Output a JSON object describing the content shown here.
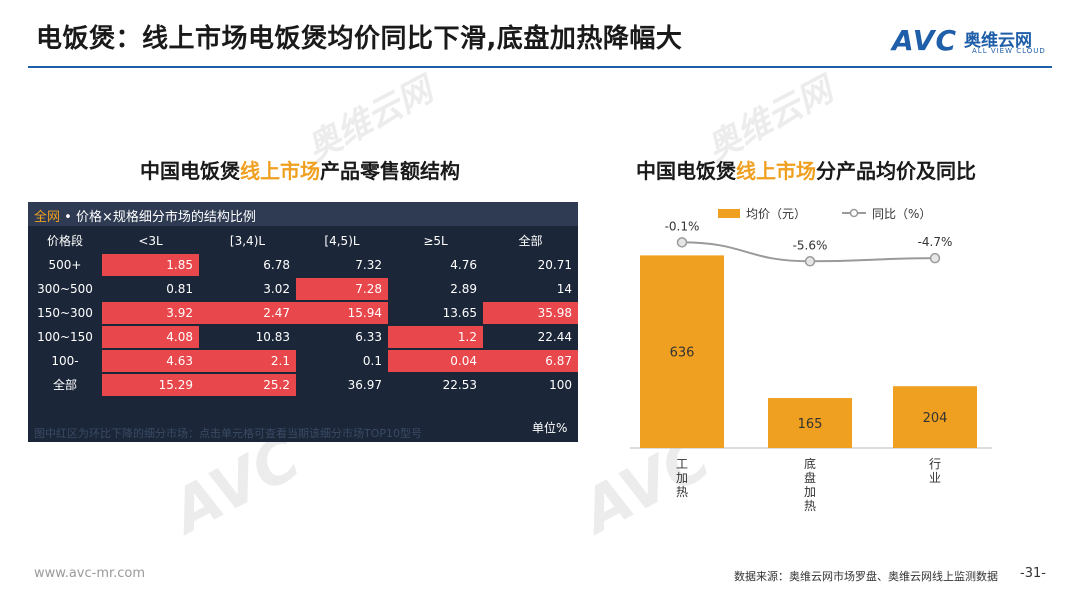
{
  "header": {
    "title": "电饭煲：线上市场电饭煲均价同比下滑,底盘加热降幅大",
    "logo_text": "AVC",
    "logo_cn": "奥维云网",
    "logo_en": "ALL VIEW CLOUD"
  },
  "watermark": {
    "cn": "奥维云网",
    "en": "ALL VIEW CLOUD",
    "mark": "AVC"
  },
  "left_panel": {
    "title_pre": "中国电饭煲",
    "title_hl": "线上市场",
    "title_post": "产品零售额结构",
    "caption_tag": "全网",
    "caption_text": " • 价格×规格细分市场的结构比例",
    "footnote": "图中红区为环比下降的细分市场：点击单元格可查看当期该细分市场TOP10型号",
    "unit": "单位%"
  },
  "right_panel": {
    "title_pre": "中国电饭煲",
    "title_hl": "线上市场",
    "title_post": "分产品均价及同比"
  },
  "footer": {
    "site": "www.avc-mr.com",
    "source": "数据来源：奥维云网市场罗盘、奥维云网线上监测数据",
    "page": "-31-"
  },
  "colors": {
    "accent": "#1f5ea8",
    "bar": "#f0a020",
    "line": "#9a9a9a",
    "red_cell": "#e8474c",
    "table_bg": "#1b2638"
  },
  "chart_data": [
    {
      "type": "table",
      "columns": [
        "价格段",
        "<3L",
        "[3,4)L",
        "[4,5)L",
        "≥5L",
        "全部"
      ],
      "rows": [
        {
          "label": "500+",
          "values": [
            "1.85",
            "6.78",
            "7.32",
            "4.76",
            "20.71"
          ],
          "red": [
            true,
            false,
            false,
            false,
            false
          ]
        },
        {
          "label": "300~500",
          "values": [
            "0.81",
            "3.02",
            "7.28",
            "2.89",
            "14"
          ],
          "red": [
            false,
            false,
            true,
            false,
            false
          ]
        },
        {
          "label": "150~300",
          "values": [
            "3.92",
            "2.47",
            "15.94",
            "13.65",
            "35.98"
          ],
          "red": [
            true,
            true,
            true,
            false,
            true
          ]
        },
        {
          "label": "100~150",
          "values": [
            "4.08",
            "10.83",
            "6.33",
            "1.2",
            "22.44"
          ],
          "red": [
            true,
            false,
            false,
            true,
            false
          ]
        },
        {
          "label": "100-",
          "values": [
            "4.63",
            "2.1",
            "0.1",
            "0.04",
            "6.87"
          ],
          "red": [
            true,
            true,
            false,
            true,
            true
          ]
        },
        {
          "label": "全部",
          "values": [
            "15.29",
            "25.2",
            "36.97",
            "22.53",
            "100"
          ],
          "red": [
            true,
            true,
            false,
            false,
            false
          ]
        }
      ]
    },
    {
      "type": "bar",
      "categories": [
        "IH加热",
        "底盘加热",
        "行业"
      ],
      "category_display": [
        "工\n加\n热",
        "底\n盘\n加\n热",
        "行\n业"
      ],
      "series": [
        {
          "name": "均价（元）",
          "kind": "bar",
          "values": [
            636,
            165,
            204
          ],
          "labels": [
            "636",
            "165",
            "204"
          ]
        },
        {
          "name": "同比（%）",
          "kind": "line",
          "values": [
            -0.1,
            -5.6,
            -4.7
          ],
          "labels": [
            "-0.1%",
            "-5.6%",
            "-4.7%"
          ]
        }
      ],
      "ylim_bar": [
        0,
        700
      ],
      "ylim_line": [
        -20,
        0
      ],
      "legend": "top"
    }
  ]
}
